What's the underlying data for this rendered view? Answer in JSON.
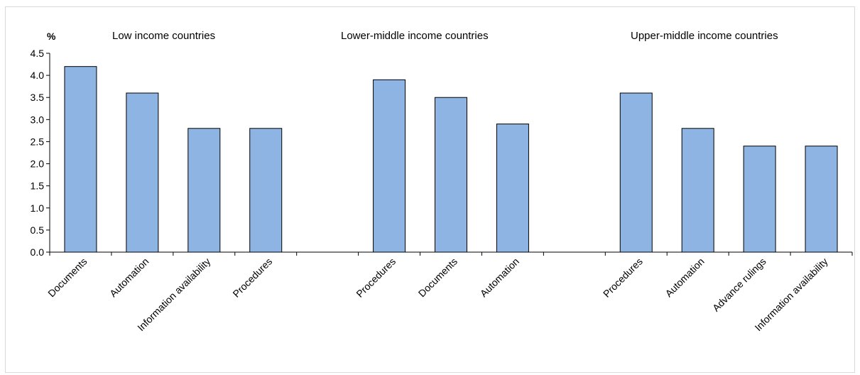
{
  "chart_data": {
    "type": "bar",
    "ylabel": "%",
    "ylim": [
      0,
      4.5
    ],
    "yticks": [
      "0.0",
      "0.5",
      "1.0",
      "1.5",
      "2.0",
      "2.5",
      "3.0",
      "3.5",
      "4.0",
      "4.5"
    ],
    "bar_color": "#8eb4e3",
    "bar_border_color": "#000000",
    "grid": false,
    "groups": [
      {
        "name": "Low income countries",
        "categories": [
          "Documents",
          "Automation",
          "Information availability",
          "Procedures"
        ],
        "values": [
          4.2,
          3.6,
          2.8,
          2.8
        ]
      },
      {
        "name": "Lower-middle income countries",
        "categories": [
          "Procedures",
          "Documents",
          "Automation"
        ],
        "values": [
          3.9,
          3.5,
          2.9
        ]
      },
      {
        "name": "Upper-middle income countries",
        "categories": [
          "Procedures",
          "Automation",
          "Advance rulings",
          "Information availability"
        ],
        "values": [
          3.6,
          2.8,
          2.4,
          2.4
        ]
      }
    ]
  }
}
